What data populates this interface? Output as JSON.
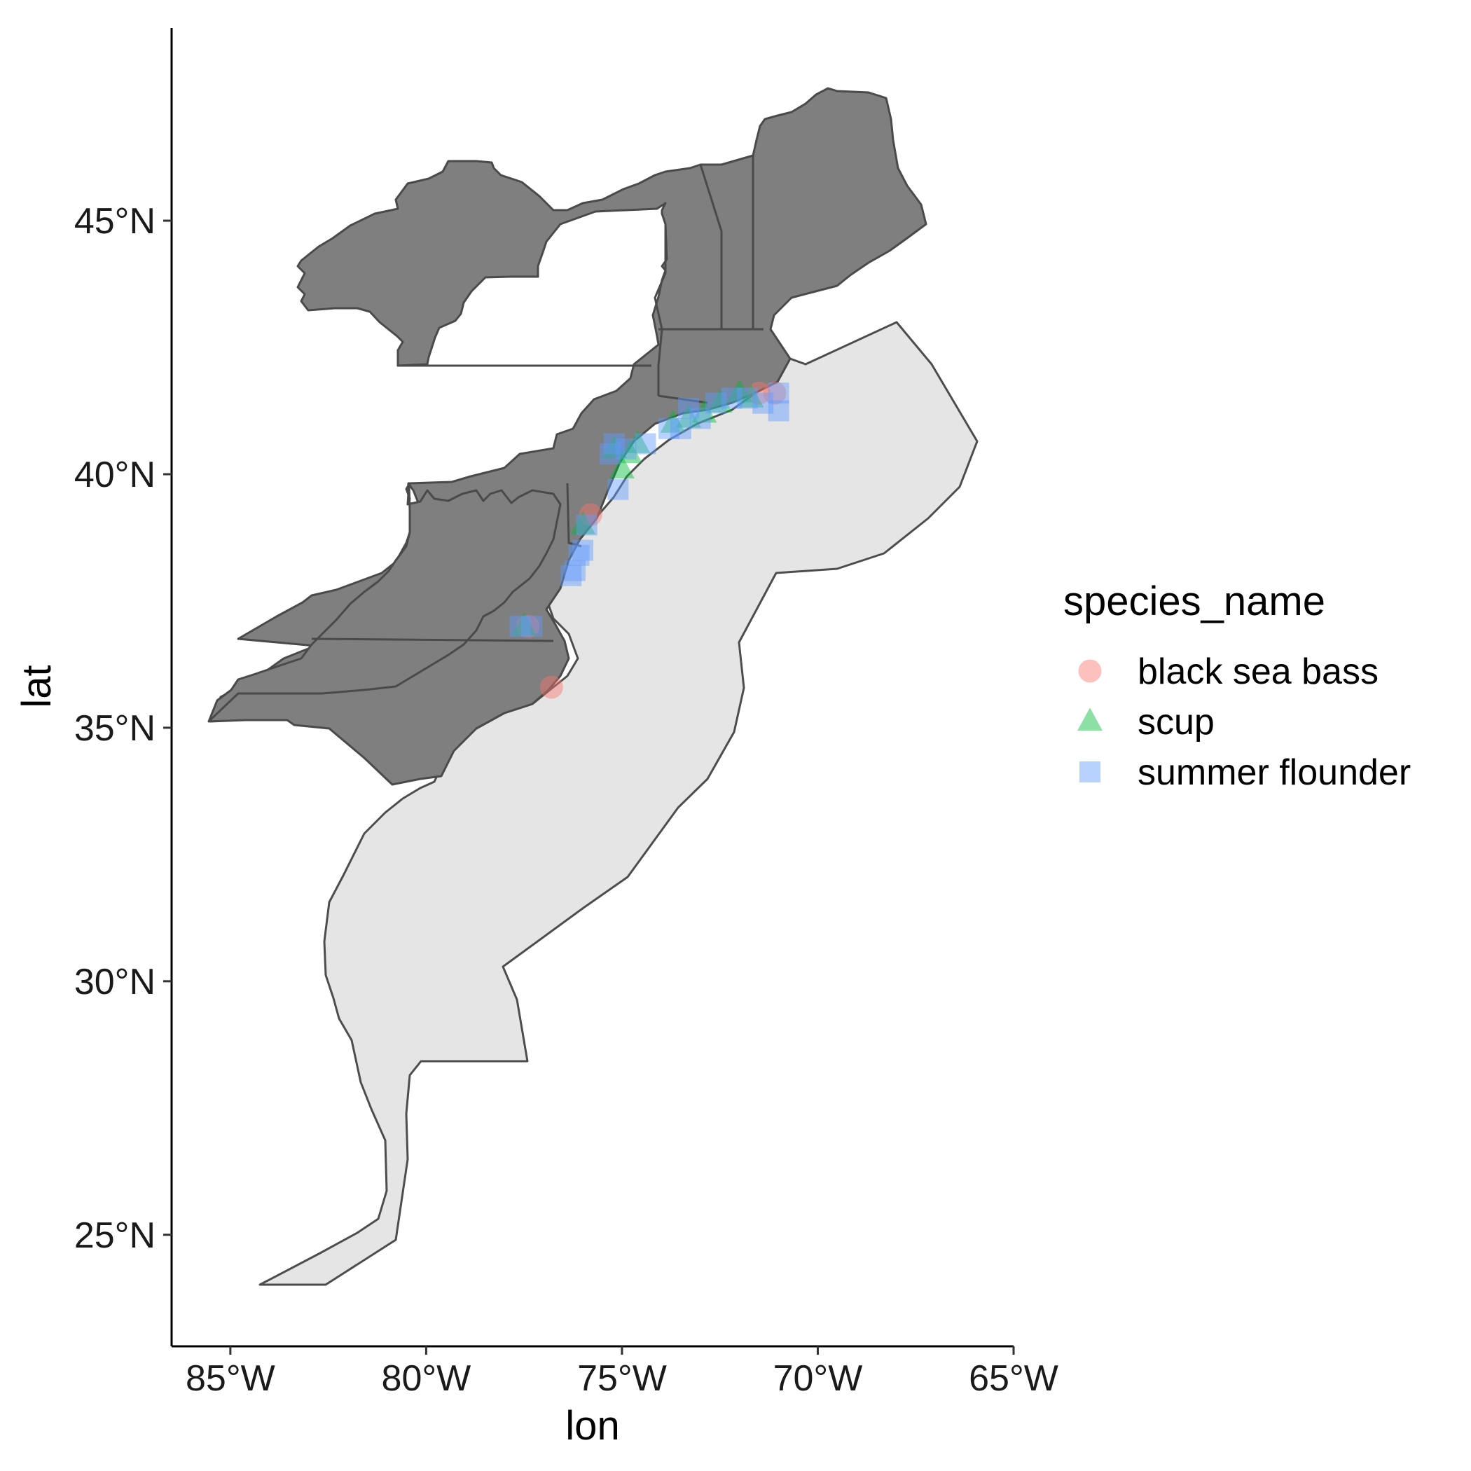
{
  "chart_data": {
    "type": "scatter",
    "map_projection": "longitude/latitude",
    "xlabel": "lon",
    "ylabel": "lat",
    "xlim": [
      -86.5,
      -65
    ],
    "ylim": [
      22.8,
      48.8
    ],
    "x_ticks": [
      {
        "value": -85,
        "label": "85°W"
      },
      {
        "value": -80,
        "label": "80°W"
      },
      {
        "value": -75,
        "label": "75°W"
      },
      {
        "value": -70,
        "label": "70°W"
      },
      {
        "value": -65,
        "label": "65°W"
      }
    ],
    "y_ticks": [
      {
        "value": 25,
        "label": "25°N"
      },
      {
        "value": 30,
        "label": "30°N"
      },
      {
        "value": 35,
        "label": "35°N"
      },
      {
        "value": 40,
        "label": "40°N"
      },
      {
        "value": 45,
        "label": "45°N"
      }
    ],
    "grid": false,
    "legend": {
      "title": "species_name",
      "position": "right"
    },
    "series": [
      {
        "name": "black sea bass",
        "shape": "circle",
        "color": "#F8766D",
        "points": [
          [
            -75.8,
            39.2
          ],
          [
            -76.8,
            35.8
          ],
          [
            -77.4,
            37.0
          ],
          [
            -71.1,
            41.6
          ],
          [
            -71.5,
            41.6
          ]
        ]
      },
      {
        "name": "scup",
        "shape": "triangle",
        "color": "#00BA38",
        "points": [
          [
            -76.0,
            39.0
          ],
          [
            -75.0,
            40.1
          ],
          [
            -74.6,
            40.6
          ],
          [
            -73.7,
            41.0
          ],
          [
            -73.3,
            41.1
          ],
          [
            -72.9,
            41.2
          ],
          [
            -72.5,
            41.4
          ],
          [
            -72.0,
            41.6
          ],
          [
            -71.7,
            41.5
          ],
          [
            -77.5,
            37.0
          ],
          [
            -75.2,
            40.5
          ],
          [
            -74.8,
            40.4
          ]
        ]
      },
      {
        "name": "summer flounder",
        "shape": "square",
        "color": "#619CFF",
        "points": [
          [
            -77.6,
            37.0
          ],
          [
            -77.3,
            37.0
          ],
          [
            -76.3,
            38.0
          ],
          [
            -76.2,
            38.1
          ],
          [
            -76.0,
            38.5
          ],
          [
            -76.1,
            38.4
          ],
          [
            -75.1,
            39.7
          ],
          [
            -75.3,
            40.4
          ],
          [
            -75.2,
            40.6
          ],
          [
            -74.9,
            40.5
          ],
          [
            -73.8,
            40.9
          ],
          [
            -73.5,
            40.9
          ],
          [
            -73.3,
            41.3
          ],
          [
            -73.0,
            41.1
          ],
          [
            -72.6,
            41.4
          ],
          [
            -72.2,
            41.5
          ],
          [
            -71.8,
            41.5
          ],
          [
            -71.4,
            41.4
          ],
          [
            -71.0,
            41.6
          ],
          [
            -71.0,
            41.25
          ],
          [
            -75.9,
            39.0
          ],
          [
            -74.4,
            40.6
          ]
        ]
      }
    ]
  }
}
